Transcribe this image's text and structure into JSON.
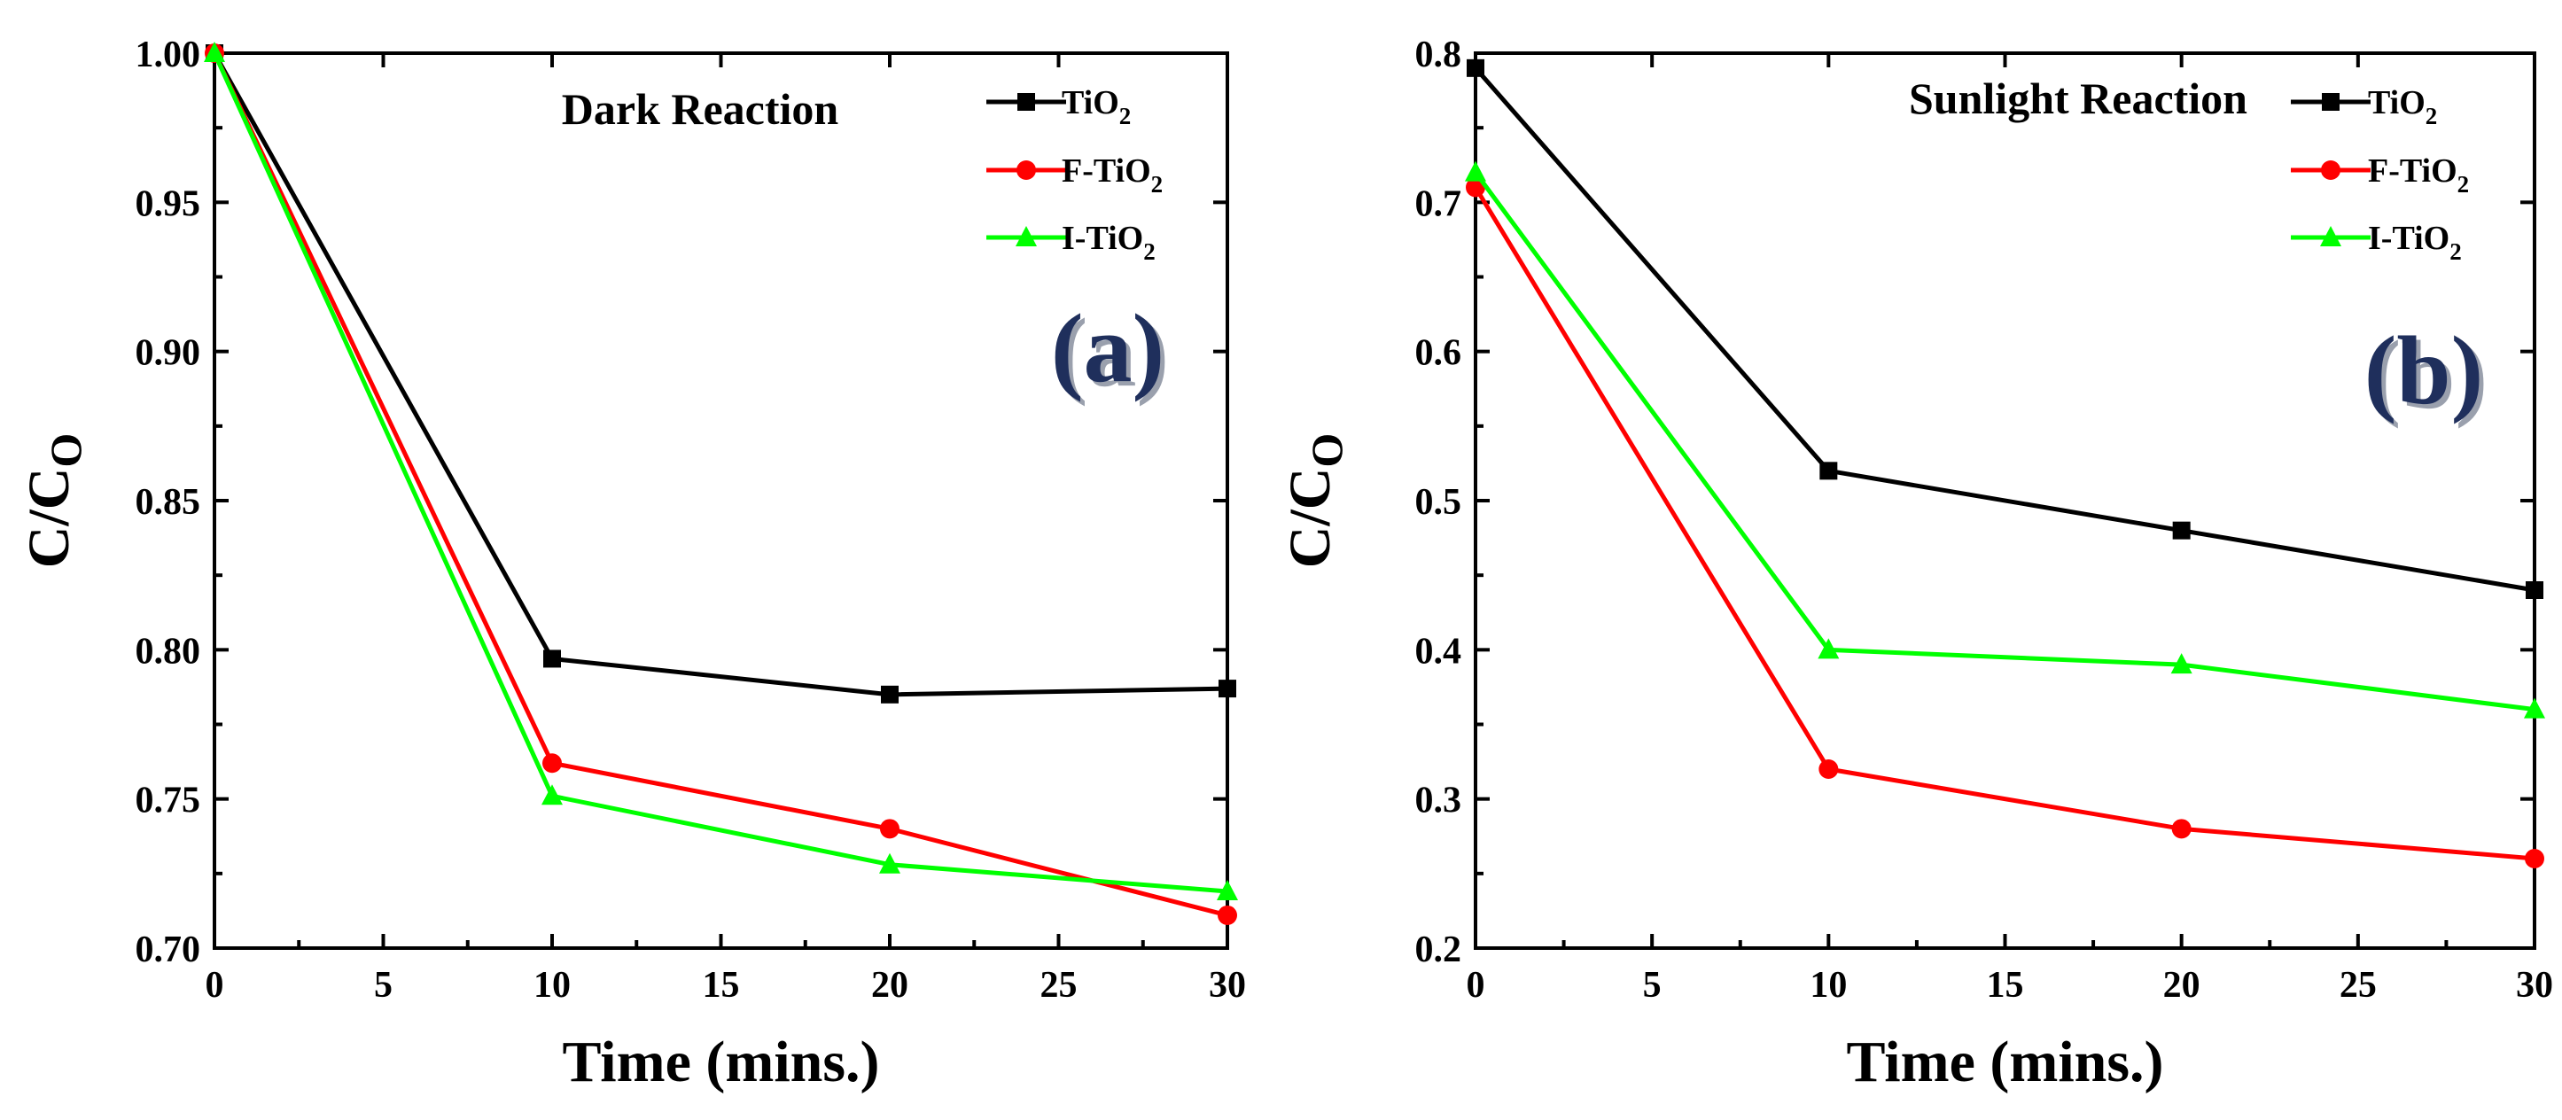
{
  "chart_data": [
    {
      "type": "line",
      "panel_label": "(a)",
      "title": "Dark Reaction",
      "xlabel": "Time (mins.)",
      "ylabel_main": "C/C",
      "ylabel_sub": "O",
      "xlim": [
        0,
        30
      ],
      "ylim": [
        0.7,
        1.0
      ],
      "xticks": [
        0,
        5,
        10,
        15,
        20,
        25,
        30
      ],
      "yticks": [
        0.7,
        0.75,
        0.8,
        0.85,
        0.9,
        0.95,
        1.0
      ],
      "ytick_labels": [
        "0.70",
        "0.75",
        "0.80",
        "0.85",
        "0.90",
        "0.95",
        "1.00"
      ],
      "x": [
        0,
        10,
        20,
        30
      ],
      "legend_position": "top-right",
      "series": [
        {
          "name": "TiO2",
          "name_main": "TiO",
          "name_sub": "2",
          "color": "#000000",
          "marker": "square",
          "values": [
            1.0,
            0.797,
            0.785,
            0.787
          ]
        },
        {
          "name": "F-TiO2",
          "name_main": "F-TiO",
          "name_sub": "2",
          "color": "#ff0000",
          "marker": "circle",
          "values": [
            1.0,
            0.762,
            0.74,
            0.711
          ]
        },
        {
          "name": "I-TiO2",
          "name_main": "I-TiO",
          "name_sub": "2",
          "color": "#00ff00",
          "marker": "triangle",
          "values": [
            1.0,
            0.751,
            0.728,
            0.719
          ]
        }
      ]
    },
    {
      "type": "line",
      "panel_label": "(b)",
      "title": "Sunlight Reaction",
      "xlabel": "Time (mins.)",
      "ylabel_main": "C/C",
      "ylabel_sub": "O",
      "xlim": [
        0,
        30
      ],
      "ylim": [
        0.2,
        0.8
      ],
      "xticks": [
        0,
        5,
        10,
        15,
        20,
        25,
        30
      ],
      "yticks": [
        0.2,
        0.3,
        0.4,
        0.5,
        0.6,
        0.7,
        0.8
      ],
      "ytick_labels": [
        "0.2",
        "0.3",
        "0.4",
        "0.5",
        "0.6",
        "0.7",
        "0.8"
      ],
      "x": [
        0,
        10,
        20,
        30
      ],
      "legend_position": "top-right",
      "series": [
        {
          "name": "TiO2",
          "name_main": "TiO",
          "name_sub": "2",
          "color": "#000000",
          "marker": "square",
          "values": [
            0.79,
            0.52,
            0.48,
            0.44
          ]
        },
        {
          "name": "F-TiO2",
          "name_main": "F-TiO",
          "name_sub": "2",
          "color": "#ff0000",
          "marker": "circle",
          "values": [
            0.71,
            0.32,
            0.28,
            0.26
          ]
        },
        {
          "name": "I-TiO2",
          "name_main": "I-TiO",
          "name_sub": "2",
          "color": "#00ff00",
          "marker": "triangle",
          "values": [
            0.72,
            0.4,
            0.39,
            0.36
          ]
        }
      ]
    }
  ]
}
